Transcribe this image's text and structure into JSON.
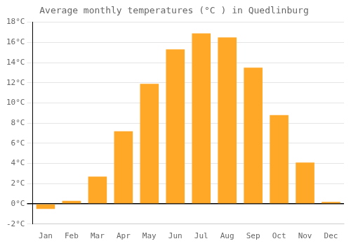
{
  "chart_data": {
    "type": "bar",
    "title": "Average monthly temperatures (°C ) in Quedlinburg",
    "categories": [
      "Jan",
      "Feb",
      "Mar",
      "Apr",
      "May",
      "Jun",
      "Jul",
      "Aug",
      "Sep",
      "Oct",
      "Nov",
      "Dec"
    ],
    "values": [
      -0.5,
      0.3,
      2.7,
      7.2,
      11.9,
      15.3,
      16.9,
      16.5,
      13.5,
      8.8,
      4.1,
      0.2
    ],
    "color": "#FFA726",
    "ylim": [
      -2,
      18
    ],
    "yticks": [
      {
        "value": -2,
        "label": "-2°C"
      },
      {
        "value": 0,
        "label": "0°C"
      },
      {
        "value": 2,
        "label": "2°C"
      },
      {
        "value": 4,
        "label": "4°C"
      },
      {
        "value": 6,
        "label": "6°C"
      },
      {
        "value": 8,
        "label": "8°C"
      },
      {
        "value": 10,
        "label": "10°C"
      },
      {
        "value": 12,
        "label": "12°C"
      },
      {
        "value": 14,
        "label": "14°C"
      },
      {
        "value": 16,
        "label": "16°C"
      },
      {
        "value": 18,
        "label": "18°C"
      }
    ],
    "grid": true
  }
}
